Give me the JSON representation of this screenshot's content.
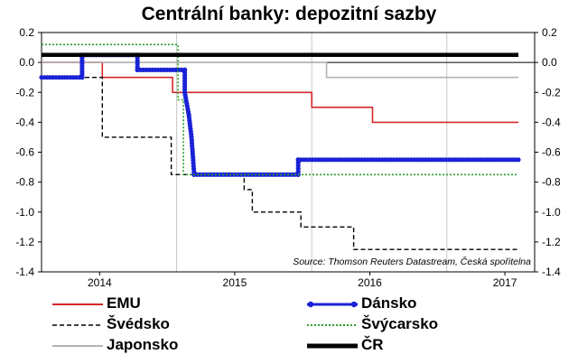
{
  "chart_data": {
    "type": "line",
    "title": "Centrální banky: depozitní sazby",
    "source": "Source: Thomson Reuters Datastream, Česká spořitelna",
    "ylim": [
      -1.4,
      0.2
    ],
    "yticks": [
      "0.2",
      "0.0",
      "-0.2",
      "-0.4",
      "-0.6",
      "-0.8",
      "-1.0",
      "-1.2",
      "-1.4"
    ],
    "ytick_values": [
      0.2,
      0.0,
      -0.2,
      -0.4,
      -0.6,
      -0.8,
      -1.0,
      -1.2,
      -1.4
    ],
    "xlim": [
      2013.47,
      2017.12
    ],
    "xticks": [
      "2014",
      "2015",
      "2016",
      "2017"
    ],
    "xtick_values": [
      2013.9,
      2014.9,
      2015.9,
      2016.9
    ],
    "gridlines": [
      2014.47,
      2015.47,
      2016.47
    ],
    "zero_line": true,
    "legend_position": "bottom",
    "series": [
      {
        "name": "EMU",
        "color": "#d62728",
        "style": "solid",
        "points": [
          [
            2013.47,
            0.0
          ],
          [
            2013.92,
            0.0
          ],
          [
            2013.92,
            -0.1
          ],
          [
            2014.44,
            -0.1
          ],
          [
            2014.44,
            -0.2
          ],
          [
            2015.47,
            -0.2
          ],
          [
            2015.47,
            -0.3
          ],
          [
            2015.92,
            -0.3
          ],
          [
            2015.92,
            -0.4
          ],
          [
            2017.0,
            -0.4
          ]
        ]
      },
      {
        "name": "Švédsko",
        "color": "#000000",
        "style": "dashed",
        "points": [
          [
            2013.47,
            -0.1
          ],
          [
            2013.92,
            -0.1
          ],
          [
            2013.92,
            -0.5
          ],
          [
            2014.43,
            -0.5
          ],
          [
            2014.43,
            -0.75
          ],
          [
            2014.97,
            -0.75
          ],
          [
            2014.97,
            -0.85
          ],
          [
            2015.03,
            -0.85
          ],
          [
            2015.03,
            -1.0
          ],
          [
            2015.39,
            -1.0
          ],
          [
            2015.39,
            -1.1
          ],
          [
            2015.78,
            -1.1
          ],
          [
            2015.78,
            -1.25
          ],
          [
            2017.0,
            -1.25
          ]
        ]
      },
      {
        "name": "Japonsko",
        "color": "#b3b3b3",
        "style": "solid",
        "points": [
          [
            2013.47,
            0.0
          ],
          [
            2015.58,
            0.0
          ],
          [
            2015.58,
            -0.1
          ],
          [
            2017.0,
            -0.1
          ]
        ]
      },
      {
        "name": "Dánsko",
        "color": "#1a22d6",
        "style": "solid-markers",
        "points": [
          [
            2013.47,
            -0.1
          ],
          [
            2013.77,
            -0.1
          ],
          [
            2013.77,
            0.05
          ],
          [
            2014.18,
            0.05
          ],
          [
            2014.18,
            -0.05
          ],
          [
            2014.53,
            -0.05
          ],
          [
            2014.53,
            -0.2
          ],
          [
            2014.56,
            -0.35
          ],
          [
            2014.58,
            -0.5
          ],
          [
            2014.6,
            -0.75
          ],
          [
            2015.37,
            -0.75
          ],
          [
            2015.37,
            -0.65
          ],
          [
            2017.0,
            -0.65
          ]
        ]
      },
      {
        "name": "Švýcarsko",
        "color": "#2a9d2a",
        "style": "dotted",
        "points": [
          [
            2013.47,
            0.12
          ],
          [
            2014.48,
            0.12
          ],
          [
            2014.48,
            -0.25
          ],
          [
            2014.52,
            -0.25
          ],
          [
            2014.52,
            -0.75
          ],
          [
            2017.0,
            -0.75
          ]
        ]
      },
      {
        "name": "ČR",
        "color": "#000000",
        "style": "thick",
        "points": [
          [
            2013.47,
            0.05
          ],
          [
            2017.0,
            0.05
          ]
        ]
      }
    ]
  },
  "legend": [
    {
      "label": "EMU"
    },
    {
      "label": "Švédsko"
    },
    {
      "label": "Japonsko"
    },
    {
      "label": "Dánsko"
    },
    {
      "label": "Švýcarsko"
    },
    {
      "label": "ČR"
    }
  ]
}
